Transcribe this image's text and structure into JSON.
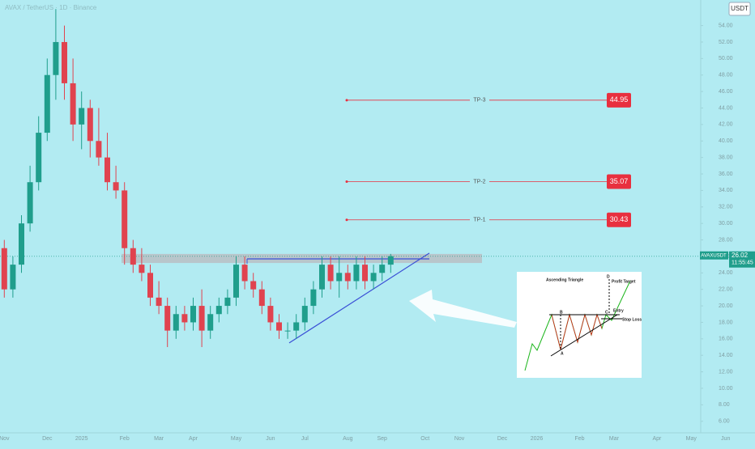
{
  "chart_data": {
    "type": "candlestick",
    "title": "AVAX / TetherUS · 1D · Binance",
    "currency": "USDT",
    "categories": [
      "Nov",
      null,
      null,
      null,
      null,
      "Dec",
      null,
      null,
      null,
      "2025",
      null,
      null,
      null,
      null,
      "Feb",
      null,
      null,
      null,
      "Mar",
      null,
      null,
      null,
      "Apr",
      null,
      null,
      null,
      null,
      "May",
      null,
      null,
      null,
      "Jun",
      null,
      null,
      null,
      "Jul",
      null,
      null,
      null,
      null,
      "Aug",
      null,
      null,
      null,
      "Sep",
      null,
      null,
      null,
      null,
      "Oct",
      null,
      null,
      null,
      "Nov",
      null,
      null,
      null,
      null,
      "Dec",
      null,
      null,
      null,
      "2026",
      null,
      null,
      null,
      null,
      "Feb",
      null,
      null,
      null,
      "Mar",
      null,
      null,
      null,
      null,
      "Apr",
      null,
      null,
      null,
      "May",
      null,
      null,
      null,
      "Jun"
    ],
    "open": [
      27,
      22,
      25,
      30,
      35,
      41,
      48,
      52,
      47,
      42,
      44,
      40,
      38,
      35,
      34,
      27,
      25,
      24,
      21,
      20,
      17,
      19,
      18,
      20,
      17,
      19,
      20,
      21,
      25,
      23,
      22,
      20,
      18,
      17,
      17,
      18,
      20,
      22,
      25,
      23,
      24,
      23,
      25,
      23,
      24,
      25,
      null,
      null,
      null,
      null,
      null,
      null,
      null,
      null,
      null,
      null,
      null,
      null,
      null,
      null,
      null,
      null,
      null,
      null,
      null,
      null,
      null,
      null,
      null,
      null,
      null,
      null,
      null,
      null,
      null,
      null,
      null,
      null,
      null,
      null,
      null,
      null,
      null,
      null,
      null
    ],
    "high": [
      28,
      26,
      31,
      37,
      43,
      50,
      56,
      54,
      50,
      46,
      45,
      44,
      41,
      37,
      35,
      28,
      27,
      25,
      23,
      21,
      20,
      20,
      21,
      22,
      20,
      21,
      22,
      26,
      26,
      24,
      23,
      21,
      19,
      18,
      19,
      21,
      23,
      26,
      26,
      26,
      25,
      26,
      26,
      25,
      26,
      26.3,
      null,
      null,
      null,
      null,
      null,
      null,
      null,
      null,
      null,
      null,
      null,
      null,
      null,
      null,
      null,
      null,
      null,
      null,
      null,
      null,
      null,
      null,
      null,
      null,
      null,
      null,
      null,
      null,
      null,
      null,
      null,
      null,
      null,
      null,
      null,
      null,
      null,
      null,
      null
    ],
    "low": [
      21,
      21,
      24,
      29,
      34,
      40,
      45,
      45,
      40,
      39,
      38,
      37,
      34,
      33,
      25,
      24,
      23,
      20,
      19,
      15,
      16,
      17,
      17,
      15,
      16,
      18,
      19,
      20,
      22,
      21,
      19,
      17,
      16,
      16,
      16,
      17,
      19,
      21,
      22,
      21,
      22,
      22,
      22,
      22,
      23,
      24,
      null,
      null,
      null,
      null,
      null,
      null,
      null,
      null,
      null,
      null,
      null,
      null,
      null,
      null,
      null,
      null,
      null,
      null,
      null,
      null,
      null,
      null,
      null,
      null,
      null,
      null,
      null,
      null,
      null,
      null,
      null,
      null,
      null,
      null,
      null,
      null,
      null,
      null,
      null
    ],
    "close": [
      22,
      25,
      30,
      35,
      41,
      48,
      52,
      47,
      42,
      44,
      40,
      38,
      35,
      34,
      27,
      25,
      24,
      21,
      20,
      17,
      19,
      18,
      20,
      17,
      19,
      20,
      21,
      25,
      23,
      22,
      20,
      18,
      17,
      17,
      18,
      20,
      22,
      25,
      23,
      24,
      23,
      25,
      23,
      24,
      25,
      26.02,
      null,
      null,
      null,
      null,
      null,
      null,
      null,
      null,
      null,
      null,
      null,
      null,
      null,
      null,
      null,
      null,
      null,
      null,
      null,
      null,
      null,
      null,
      null,
      null,
      null,
      null,
      null,
      null,
      null,
      null,
      null,
      null,
      null,
      null,
      null,
      null,
      null,
      null,
      null
    ],
    "up_color": "#1f9e8c",
    "down_color": "#e0434f",
    "ylim": [
      4.6,
      57.1
    ],
    "yticks": [
      {
        "value": 6,
        "label": "6.00"
      },
      {
        "value": 8,
        "label": "8.00"
      },
      {
        "value": 10,
        "label": "10.00"
      },
      {
        "value": 12,
        "label": "12.00"
      },
      {
        "value": 14,
        "label": "14.00"
      },
      {
        "value": 16,
        "label": "16.00"
      },
      {
        "value": 18,
        "label": "18.00"
      },
      {
        "value": 20,
        "label": "20.00"
      },
      {
        "value": 22,
        "label": "22.00"
      },
      {
        "value": 24,
        "label": "24.00"
      },
      {
        "value": 26,
        "label": "26.00"
      },
      {
        "value": 28,
        "label": "28.00"
      },
      {
        "value": 30,
        "label": "30.00"
      },
      {
        "value": 32,
        "label": "32.00"
      },
      {
        "value": 34,
        "label": "34.00"
      },
      {
        "value": 36,
        "label": "36.00"
      },
      {
        "value": 38,
        "label": "38.00"
      },
      {
        "value": 40,
        "label": "40.00"
      },
      {
        "value": 42,
        "label": "42.00"
      },
      {
        "value": 44,
        "label": "44.00"
      },
      {
        "value": 46,
        "label": "46.00"
      },
      {
        "value": 48,
        "label": "48.00"
      },
      {
        "value": 50,
        "label": "50.00"
      },
      {
        "value": 52,
        "label": "52.00"
      },
      {
        "value": 54,
        "label": "54.00"
      }
    ],
    "targets": [
      {
        "label": "TP-3",
        "value": 44.95
      },
      {
        "label": "TP-2",
        "value": 35.07
      },
      {
        "label": "TP-1",
        "value": 30.43
      }
    ],
    "target_color": "#e8303f",
    "resistance_zone": [
      25.2,
      26.3
    ],
    "triangle": {
      "top": 25.7,
      "support_start": 15.5,
      "support_end": 26.4,
      "color": "#3a4fd6"
    },
    "last": {
      "symbol": "AVAXUSDT",
      "price": 26.02,
      "countdown": "11:55:45",
      "color": "#1f9e8c"
    },
    "inset": {
      "title": "Ascending Triangle",
      "profit_target": "Profit Target",
      "entry": "Entry",
      "stop_loss": "Stop Loss",
      "points": [
        "A",
        "B",
        "C",
        "D"
      ]
    }
  }
}
